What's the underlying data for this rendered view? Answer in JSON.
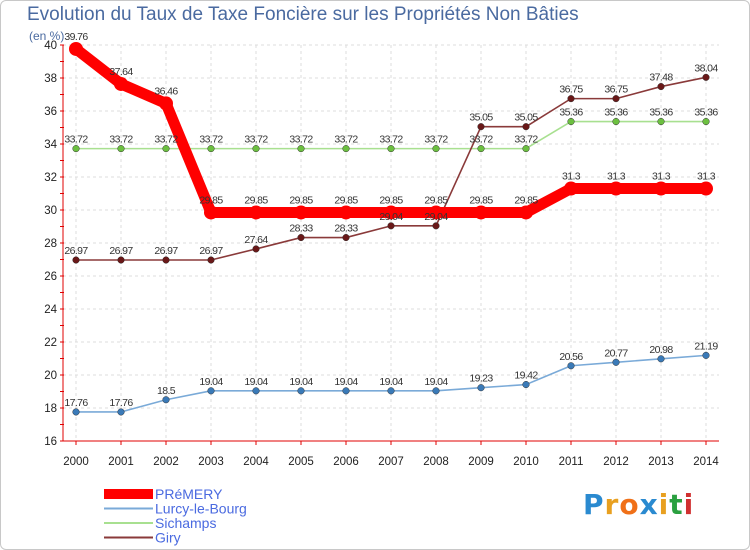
{
  "chart_data": {
    "type": "line",
    "title": "Evolution du Taux de Taxe Foncière sur les Propriétés Non Bâties",
    "ylabel": "(en %)",
    "xlabel": "",
    "x": [
      2000,
      2001,
      2002,
      2003,
      2004,
      2005,
      2006,
      2007,
      2008,
      2009,
      2010,
      2011,
      2012,
      2013,
      2014
    ],
    "x_tick_labels": [
      "2000",
      "2001",
      "2002",
      "2003",
      "2004",
      "2005",
      "2006",
      "2007",
      "2008",
      "2009",
      "2010",
      "2011",
      "2012",
      "2013",
      "2014"
    ],
    "ylim": [
      16,
      40
    ],
    "y_ticks": [
      16,
      18,
      20,
      22,
      24,
      26,
      28,
      30,
      32,
      34,
      36,
      38,
      40
    ],
    "y_tick_labels": [
      "16",
      "18",
      "20",
      "22",
      "24",
      "26",
      "28",
      "30",
      "32",
      "34",
      "36",
      "38",
      "40"
    ],
    "grid": true,
    "legend_position": "bottom-left",
    "series": [
      {
        "name": "PRéMERY",
        "color": "#ff0000",
        "marker_color": "#ff0000",
        "emphasis": true,
        "values": [
          39.76,
          37.64,
          36.46,
          29.85,
          29.85,
          29.85,
          29.85,
          29.85,
          29.85,
          29.85,
          29.85,
          31.3,
          31.3,
          31.3,
          31.3
        ],
        "labels": [
          "39.76",
          "37.64",
          "36.46",
          "29.85",
          "29.85",
          "29.85",
          "29.85",
          "29.85",
          "29.85",
          "29.85",
          "29.85",
          "31.3",
          "31.3",
          "31.3",
          "31.3"
        ]
      },
      {
        "name": "Lurcy-le-Bourg",
        "color": "#7aaad8",
        "marker_color": "#3a7ab8",
        "emphasis": false,
        "values": [
          17.76,
          17.76,
          18.5,
          19.04,
          19.04,
          19.04,
          19.04,
          19.04,
          19.04,
          19.23,
          19.42,
          20.56,
          20.77,
          20.98,
          21.19
        ],
        "labels": [
          "17.76",
          "17.76",
          "18.5",
          "19.04",
          "19.04",
          "19.04",
          "19.04",
          "19.04",
          "19.04",
          "19.23",
          "19.42",
          "20.56",
          "20.77",
          "20.98",
          "21.19"
        ]
      },
      {
        "name": "Sichamps",
        "color": "#a8e090",
        "marker_color": "#6cc040",
        "emphasis": false,
        "values": [
          33.72,
          33.72,
          33.72,
          33.72,
          33.72,
          33.72,
          33.72,
          33.72,
          33.72,
          33.72,
          33.72,
          35.36,
          35.36,
          35.36,
          35.36
        ],
        "labels": [
          "33.72",
          "33.72",
          "33.72",
          "33.72",
          "33.72",
          "33.72",
          "33.72",
          "33.72",
          "33.72",
          "33.72",
          "33.72",
          "35.36",
          "35.36",
          "35.36",
          "35.36"
        ]
      },
      {
        "name": "Giry",
        "color": "#8a3a3a",
        "marker_color": "#6a1818",
        "emphasis": false,
        "values": [
          26.97,
          26.97,
          26.97,
          26.97,
          27.64,
          28.33,
          28.33,
          29.04,
          29.04,
          35.05,
          35.05,
          36.75,
          36.75,
          37.48,
          38.04
        ],
        "labels": [
          "26.97",
          "26.97",
          "26.97",
          "26.97",
          "27.64",
          "28.33",
          "28.33",
          "29.04",
          "29.04",
          "35.05",
          "35.05",
          "36.75",
          "36.75",
          "37.48",
          "38.04"
        ]
      }
    ]
  },
  "logo": {
    "letters": [
      "P",
      "r",
      "o",
      "x",
      "i",
      "t",
      "i"
    ],
    "colors": [
      "#2a8ad0",
      "#e8a020",
      "#f07018",
      "#2a8ad0",
      "#e8a020",
      "#2aa040",
      "#d03030"
    ]
  }
}
